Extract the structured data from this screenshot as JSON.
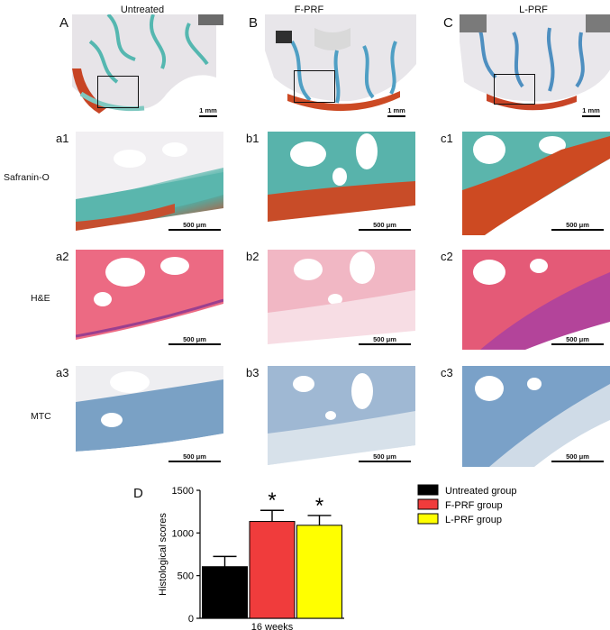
{
  "columns": {
    "A": {
      "letter": "A",
      "title": "Untreated"
    },
    "B": {
      "letter": "B",
      "title": "F-PRF"
    },
    "C": {
      "letter": "C",
      "title": "L-PRF"
    }
  },
  "rows": {
    "r1": "Safranin-O",
    "r2": "H&E",
    "r3": "MTC"
  },
  "sub_labels": {
    "a1": "a1",
    "b1": "b1",
    "c1": "c1",
    "a2": "a2",
    "b2": "b2",
    "c2": "c2",
    "a3": "a3",
    "b3": "b3",
    "c3": "c3"
  },
  "scale": {
    "overview": "1 mm",
    "detail": "500 μm"
  },
  "chart_letter": "D",
  "chart_data": {
    "type": "bar",
    "categories": [
      "Untreated group",
      "F-PRF group",
      "L-PRF group"
    ],
    "values": [
      605,
      1135,
      1090
    ],
    "errors": [
      120,
      130,
      115
    ],
    "significance": [
      "",
      "*",
      "*"
    ],
    "colors": [
      "#000000",
      "#f03c3c",
      "#ffff00"
    ],
    "ylabel": "Histological scores",
    "xlabel": "16 weeks",
    "yticks": [
      0,
      500,
      1000,
      1500
    ],
    "ylim": [
      0,
      1500
    ],
    "legend": [
      "Untreated group",
      "F-PRF group",
      "L-PRF group"
    ],
    "legend_position": "right"
  }
}
